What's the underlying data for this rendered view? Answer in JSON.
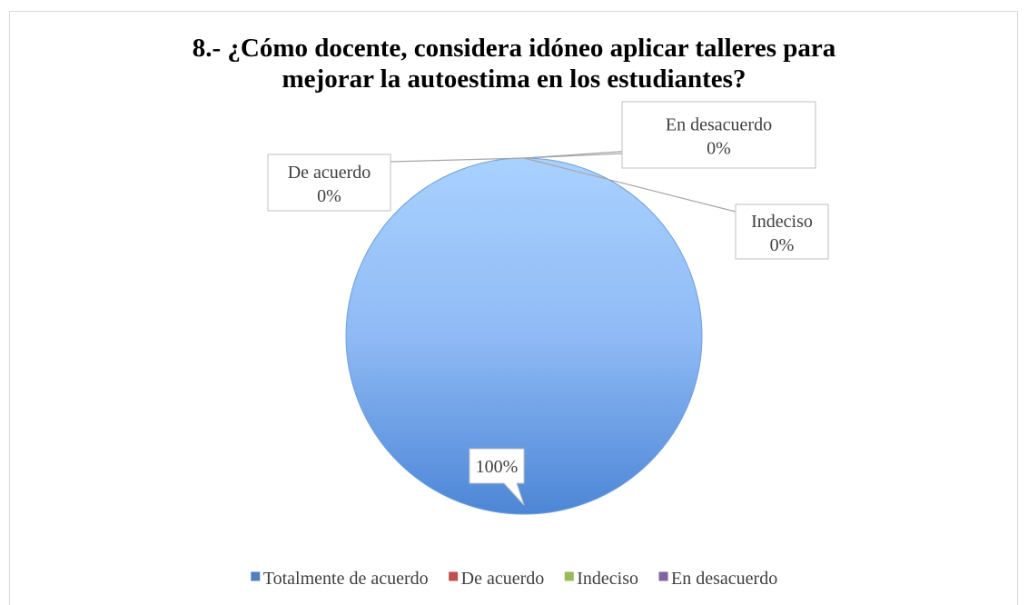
{
  "chart_data": {
    "type": "pie",
    "title": "8.- ¿Cómo docente, considera idóneo aplicar talleres para mejorar la autoestima en los estudiantes?",
    "categories": [
      "Totalmente de acuerdo",
      "De acuerdo",
      "Indeciso",
      "En desacuerdo"
    ],
    "values": [
      100,
      0,
      0,
      0
    ],
    "value_labels": [
      "100%",
      "0%",
      "0%",
      "0%"
    ],
    "colors": [
      "#4f81bd",
      "#c0504d",
      "#9bbb59",
      "#8064a2"
    ],
    "legend": "bottom"
  }
}
